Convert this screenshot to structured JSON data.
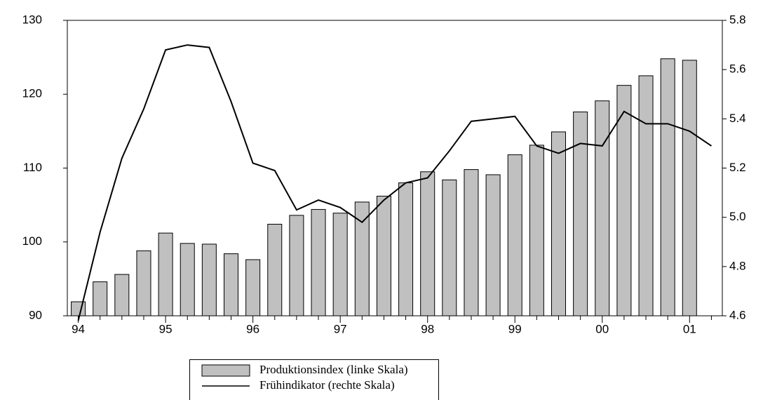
{
  "chart_data": {
    "type": "bar-line",
    "categories": [
      "94",
      null,
      null,
      null,
      "95",
      null,
      null,
      null,
      "96",
      null,
      null,
      null,
      "97",
      null,
      null,
      null,
      "98",
      null,
      null,
      null,
      "99",
      null,
      null,
      null,
      "00",
      null,
      null,
      null,
      "01",
      null
    ],
    "series": [
      {
        "name": "Produktionsindex (linke Skala)",
        "type": "bar",
        "color": "#c0c0c0",
        "axis": "y",
        "values": [
          91.9,
          94.6,
          95.6,
          98.8,
          101.2,
          99.8,
          99.7,
          98.4,
          97.6,
          102.4,
          103.6,
          104.4,
          103.9,
          105.4,
          106.2,
          108.0,
          109.5,
          108.4,
          109.8,
          109.1,
          111.8,
          113.1,
          114.9,
          117.6,
          119.1,
          121.2,
          122.5,
          124.8,
          124.6,
          null
        ]
      },
      {
        "name": "Frühindikator (rechte Skala)",
        "type": "line",
        "color": "#000000",
        "axis": "y2",
        "values": [
          4.58,
          4.94,
          5.24,
          5.44,
          5.68,
          5.7,
          5.69,
          5.47,
          5.22,
          5.19,
          5.03,
          5.07,
          5.04,
          4.98,
          5.07,
          5.14,
          5.16,
          5.27,
          5.39,
          5.4,
          5.41,
          5.29,
          5.26,
          5.3,
          5.29,
          5.43,
          5.38,
          5.38,
          5.35,
          5.29
        ]
      }
    ],
    "ylim": [
      90,
      130
    ],
    "yticks": [
      90,
      100,
      110,
      120,
      130
    ],
    "y2lim": [
      4.6,
      5.8
    ],
    "y2ticks": [
      4.6,
      4.8,
      {
        "value": 5.0,
        "label": "5.0"
      },
      5.2,
      5.4,
      5.6,
      5.8
    ]
  }
}
